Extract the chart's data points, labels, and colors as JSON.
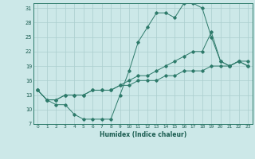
{
  "xlabel": "Humidex (Indice chaleur)",
  "bg_color": "#cce8e8",
  "line_color": "#2d7a6a",
  "grid_color": "#aacece",
  "xlim": [
    -0.5,
    23.5
  ],
  "ylim": [
    7,
    32
  ],
  "xticks": [
    0,
    1,
    2,
    3,
    4,
    5,
    6,
    7,
    8,
    9,
    10,
    11,
    12,
    13,
    14,
    15,
    16,
    17,
    18,
    19,
    20,
    21,
    22,
    23
  ],
  "yticks": [
    7,
    10,
    13,
    16,
    19,
    22,
    25,
    28,
    31
  ],
  "series": [
    {
      "x": [
        0,
        1,
        2,
        3,
        4,
        5,
        6,
        7,
        8,
        9,
        10,
        11,
        12,
        13,
        14,
        15,
        16,
        17,
        18,
        19,
        20,
        21,
        22,
        23
      ],
      "y": [
        14,
        12,
        11,
        11,
        9,
        8,
        8,
        8,
        8,
        13,
        18,
        24,
        27,
        30,
        30,
        29,
        32,
        32,
        31,
        25,
        20,
        19,
        20,
        19
      ]
    },
    {
      "x": [
        0,
        1,
        2,
        3,
        4,
        5,
        6,
        7,
        8,
        9,
        10,
        11,
        12,
        13,
        14,
        15,
        16,
        17,
        18,
        19,
        20,
        21,
        22,
        23
      ],
      "y": [
        14,
        12,
        12,
        13,
        13,
        13,
        14,
        14,
        14,
        15,
        15,
        16,
        16,
        16,
        17,
        17,
        18,
        18,
        18,
        19,
        19,
        19,
        20,
        20
      ]
    },
    {
      "x": [
        0,
        1,
        2,
        3,
        4,
        5,
        6,
        7,
        8,
        9,
        10,
        11,
        12,
        13,
        14,
        15,
        16,
        17,
        18,
        19,
        20,
        21,
        22,
        23
      ],
      "y": [
        14,
        12,
        12,
        13,
        13,
        13,
        14,
        14,
        14,
        15,
        16,
        17,
        17,
        18,
        19,
        20,
        21,
        22,
        22,
        26,
        20,
        19,
        20,
        19
      ]
    }
  ]
}
